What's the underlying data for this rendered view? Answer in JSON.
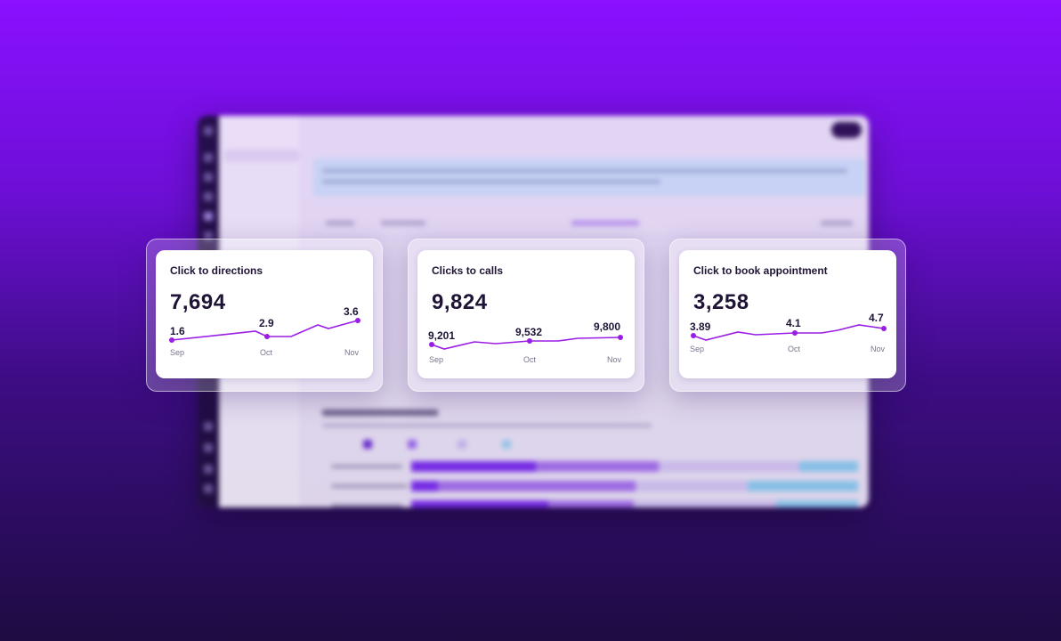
{
  "colors": {
    "accent": "#8a10ff",
    "line": "#9a1de6",
    "text": "#1f1436",
    "muted": "#7a738c"
  },
  "cards": [
    {
      "title": "Click to directions",
      "value": "7,694",
      "labels": {
        "start": "1.6",
        "mid": "2.9",
        "end": "3.6"
      },
      "axis": [
        "Sep",
        "Oct",
        "Nov"
      ]
    },
    {
      "title": "Clicks to calls",
      "value": "9,824",
      "labels": {
        "start": "9,201",
        "mid": "9,532",
        "end": "9,800"
      },
      "axis": [
        "Sep",
        "Oct",
        "Nov"
      ]
    },
    {
      "title": "Click to book appointment",
      "value": "3,258",
      "labels": {
        "start": "3.89",
        "mid": "4.1",
        "end": "4.7"
      },
      "axis": [
        "Sep",
        "Oct",
        "Nov"
      ]
    }
  ]
}
